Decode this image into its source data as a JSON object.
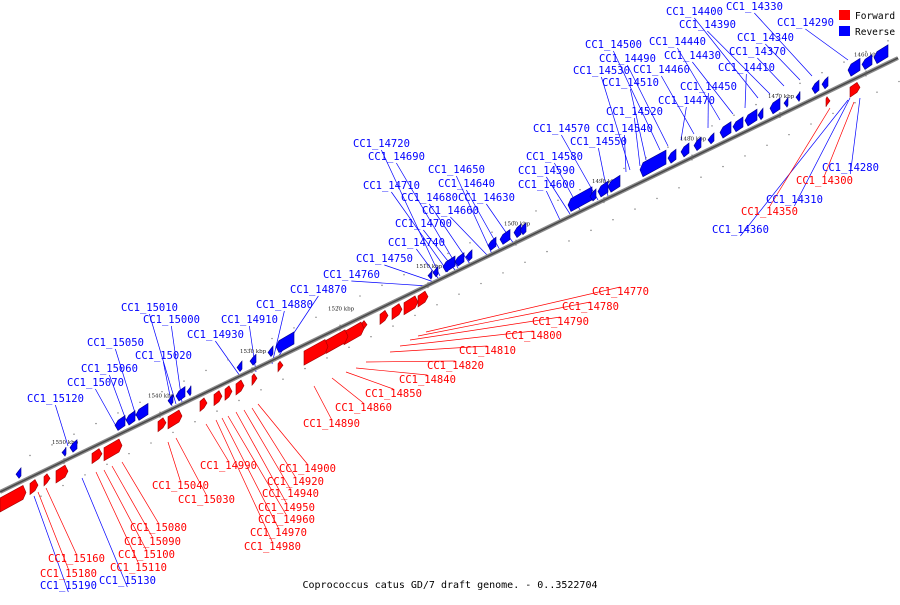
{
  "caption": "Coprococcus catus GD/7 draft genome. - 0..3522704",
  "legend": [
    {
      "label": "Forward",
      "color": "#ff0000"
    },
    {
      "label": "Reverse",
      "color": "#0000ff"
    }
  ],
  "colors": {
    "forward": "#ff0000",
    "reverse": "#0000ff",
    "axis": "#555555"
  },
  "ticks": [
    "1460 kbp",
    "1470 kbp",
    "1480 kbp",
    "1490 kbp",
    "1500 kbp",
    "1510 kbp",
    "1520 kbp",
    "1530 kbp",
    "1540 kbp",
    "1550 kbp"
  ],
  "reverse_labels": [
    "CC1_14280",
    "CC1_14290",
    "CC1_14310",
    "CC1_14330",
    "CC1_14340",
    "CC1_14360",
    "CC1_14370",
    "CC1_14390",
    "CC1_14400",
    "CC1_14410",
    "CC1_14430",
    "CC1_14440",
    "CC1_14450",
    "CC1_14460",
    "CC1_14470",
    "CC1_14490",
    "CC1_14500",
    "CC1_14510",
    "CC1_14520",
    "CC1_14530",
    "CC1_14540",
    "CC1_14550",
    "CC1_14570",
    "CC1_14580",
    "CC1_14590",
    "CC1_14600",
    "CC1_14630",
    "CC1_14640",
    "CC1_14650",
    "CC1_14660",
    "CC1_14680",
    "CC1_14690",
    "CC1_14700",
    "CC1_14710",
    "CC1_14720",
    "CC1_14740",
    "CC1_14750",
    "CC1_14760",
    "CC1_14870",
    "CC1_14880",
    "CC1_14910",
    "CC1_14930",
    "CC1_15000",
    "CC1_15010",
    "CC1_15020",
    "CC1_15050",
    "CC1_15060",
    "CC1_15070",
    "CC1_15120",
    "CC1_15130",
    "CC1_15190"
  ],
  "forward_labels": [
    "CC1_14300",
    "CC1_14350",
    "CC1_14770",
    "CC1_14780",
    "CC1_14790",
    "CC1_14800",
    "CC1_14810",
    "CC1_14820",
    "CC1_14840",
    "CC1_14850",
    "CC1_14860",
    "CC1_14890",
    "CC1_14900",
    "CC1_14920",
    "CC1_14940",
    "CC1_14950",
    "CC1_14960",
    "CC1_14970",
    "CC1_14980",
    "CC1_14990",
    "CC1_15030",
    "CC1_15040",
    "CC1_15080",
    "CC1_15090",
    "CC1_15100",
    "CC1_15110",
    "CC1_15160",
    "CC1_15180"
  ]
}
